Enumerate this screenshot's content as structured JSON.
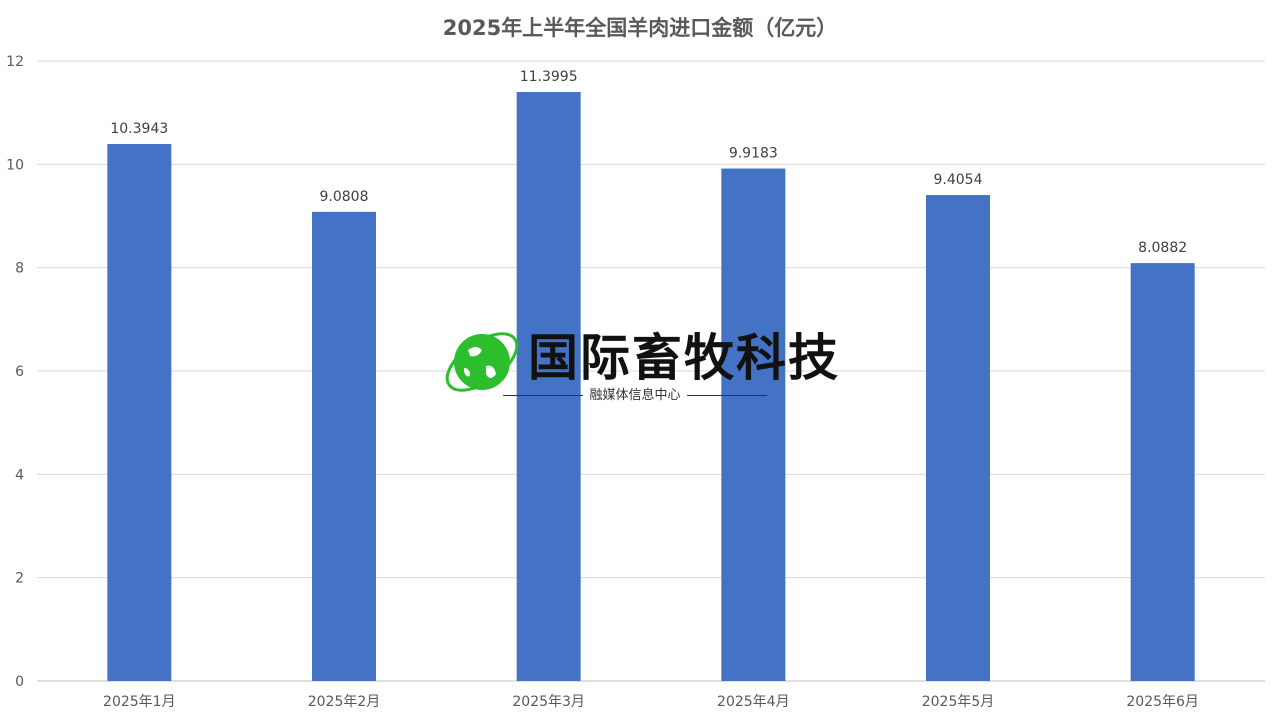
{
  "chart_data": {
    "type": "bar",
    "title": "2025年上半年全国羊肉进口金额（亿元）",
    "categories": [
      "2025年1月",
      "2025年2月",
      "2025年3月",
      "2025年4月",
      "2025年5月",
      "2025年6月"
    ],
    "values": [
      10.3943,
      9.0808,
      11.3995,
      9.9183,
      9.4054,
      8.0882
    ],
    "data_labels": [
      "10.3943",
      "9.0808",
      "11.3995",
      "9.9183",
      "9.4054",
      "8.0882"
    ],
    "ylim": [
      0,
      12
    ],
    "yticks": [
      0,
      2,
      4,
      6,
      8,
      10,
      12
    ],
    "grid": true,
    "legend": "none",
    "bar_color": "#4472C4"
  },
  "watermark": {
    "name": "国际畜牧科技",
    "subtitle": "融媒体信息中心",
    "logo_color": "#2DBE2D"
  }
}
